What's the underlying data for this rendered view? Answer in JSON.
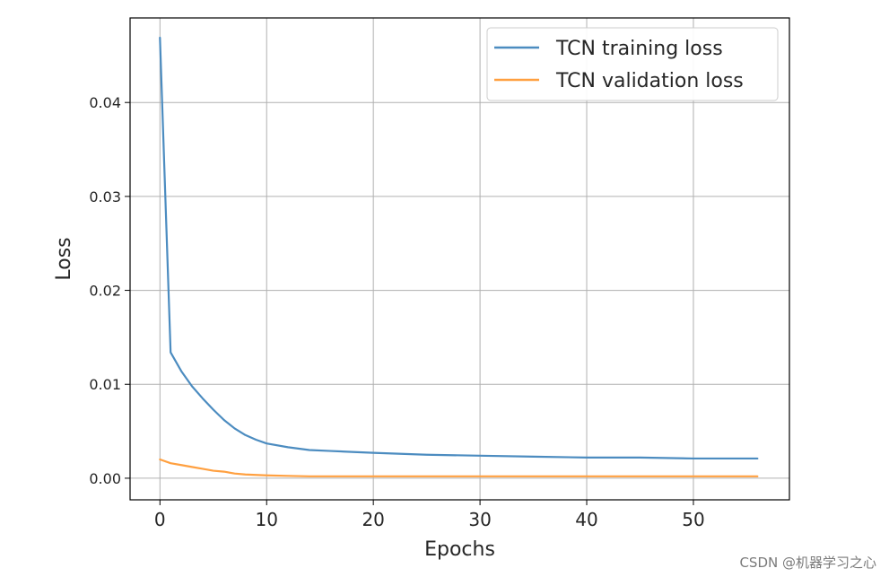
{
  "chart_data": {
    "type": "line",
    "title": "",
    "xlabel": "Epochs",
    "ylabel": "Loss",
    "xlim": [
      -2.8,
      59
    ],
    "ylim": [
      -0.0023,
      0.049
    ],
    "xticks": [
      0,
      10,
      20,
      30,
      40,
      50
    ],
    "xtick_labels": [
      "0",
      "10",
      "20",
      "30",
      "40",
      "50"
    ],
    "yticks": [
      0.0,
      0.01,
      0.02,
      0.03,
      0.04
    ],
    "ytick_labels": [
      "0.00",
      "0.01",
      "0.02",
      "0.03",
      "0.04"
    ],
    "grid": true,
    "legend_position": "top-right",
    "series": [
      {
        "name": "TCN training loss",
        "color": "#4c8cc0",
        "x": [
          0,
          1,
          2,
          3,
          4,
          5,
          6,
          7,
          8,
          9,
          10,
          12,
          14,
          16,
          18,
          20,
          25,
          30,
          35,
          40,
          45,
          50,
          56
        ],
        "y": [
          0.0469,
          0.0134,
          0.0114,
          0.0098,
          0.0085,
          0.0073,
          0.0062,
          0.0053,
          0.0046,
          0.0041,
          0.0037,
          0.0033,
          0.003,
          0.0029,
          0.0028,
          0.0027,
          0.0025,
          0.0024,
          0.0023,
          0.0022,
          0.0022,
          0.0021,
          0.0021
        ]
      },
      {
        "name": "TCN validation loss",
        "color": "#ffa040",
        "x": [
          0,
          1,
          2,
          3,
          4,
          5,
          6,
          7,
          8,
          9,
          10,
          12,
          14,
          16,
          20,
          30,
          40,
          50,
          56
        ],
        "y": [
          0.002,
          0.0016,
          0.0014,
          0.0012,
          0.001,
          0.0008,
          0.0007,
          0.0005,
          0.0004,
          0.00035,
          0.0003,
          0.00025,
          0.0002,
          0.0002,
          0.0002,
          0.0002,
          0.0002,
          0.0002,
          0.0002
        ]
      }
    ]
  },
  "watermark": "CSDN @机器学习之心"
}
